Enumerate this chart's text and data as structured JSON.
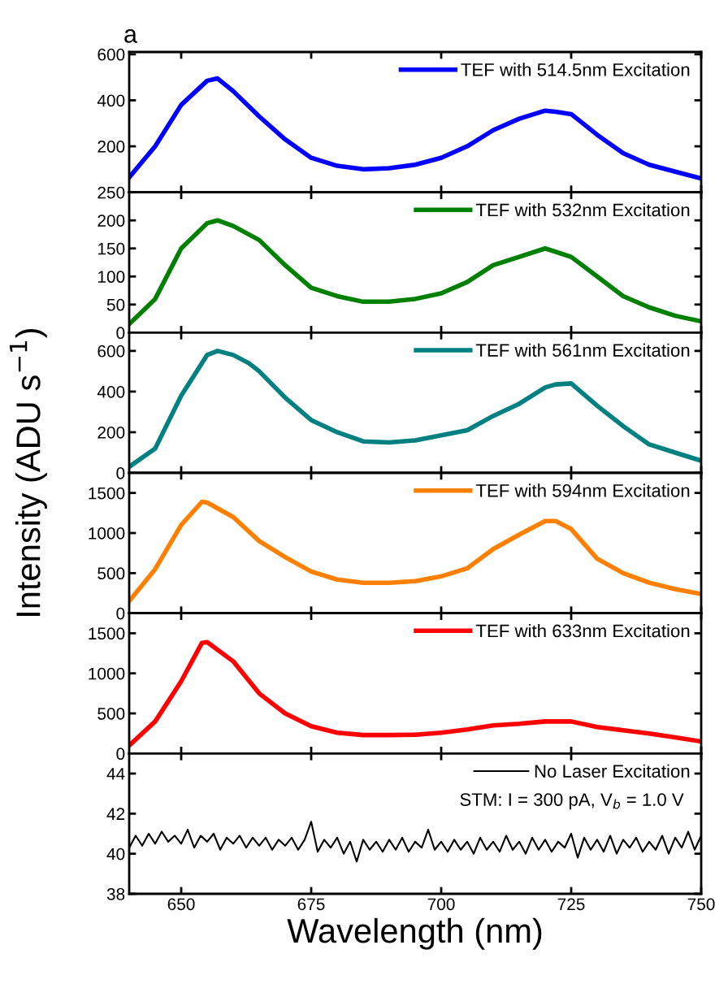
{
  "chart_data": [
    {
      "type": "line",
      "annotations": [
        "a"
      ],
      "ylabel": "Intensity (ADU s$^{−1}$)",
      "xlim": [
        640,
        750
      ],
      "xticks": [
        650,
        675,
        700,
        725,
        750
      ],
      "ylim": [
        0,
        610
      ],
      "yticks": [
        {
          "value": 0,
          "label": null
        },
        200,
        400,
        600
      ],
      "tick_labels": "y",
      "legend": "top right",
      "grid": false,
      "x": [
        640,
        645,
        650,
        655,
        657,
        660,
        665,
        670,
        675,
        680,
        685,
        690,
        695,
        700,
        705,
        710,
        715,
        720,
        722,
        725,
        730,
        735,
        740,
        745,
        750
      ],
      "series": [
        {
          "name": "TEF with 514.5nm Excitation",
          "color": "#0000ff",
          "values": [
            65,
            200,
            380,
            485,
            495,
            440,
            330,
            230,
            150,
            115,
            100,
            105,
            120,
            150,
            200,
            270,
            320,
            355,
            350,
            340,
            250,
            170,
            120,
            90,
            60
          ]
        }
      ]
    },
    {
      "type": "line",
      "xlim": [
        640,
        750
      ],
      "xticks": [
        650,
        675,
        700,
        725,
        750
      ],
      "ylim": [
        0,
        250
      ],
      "yticks": [
        0,
        50,
        100,
        150,
        200,
        250
      ],
      "tick_labels": "y",
      "legend": "top right",
      "grid": false,
      "x": [
        640,
        645,
        650,
        655,
        657,
        660,
        665,
        670,
        675,
        680,
        685,
        690,
        695,
        700,
        705,
        710,
        715,
        720,
        725,
        730,
        735,
        740,
        745,
        750
      ],
      "series": [
        {
          "name": "TEF with 532nm Excitation",
          "color": "#008000",
          "values": [
            15,
            60,
            150,
            195,
            200,
            190,
            165,
            120,
            80,
            65,
            55,
            55,
            60,
            70,
            90,
            120,
            135,
            150,
            135,
            100,
            65,
            45,
            30,
            20
          ]
        }
      ]
    },
    {
      "type": "line",
      "xlim": [
        640,
        750
      ],
      "xticks": [
        650,
        675,
        700,
        725,
        750
      ],
      "ylim": [
        0,
        690
      ],
      "yticks": [
        0,
        200,
        400,
        600
      ],
      "tick_labels": "y",
      "legend": "top right",
      "grid": false,
      "x": [
        640,
        645,
        650,
        655,
        657,
        660,
        663,
        665,
        670,
        675,
        680,
        685,
        690,
        695,
        700,
        705,
        710,
        715,
        720,
        722,
        725,
        730,
        735,
        740,
        745,
        750
      ],
      "series": [
        {
          "name": "TEF with 561nm Excitation",
          "color": "#008080",
          "values": [
            30,
            120,
            380,
            580,
            600,
            580,
            540,
            500,
            370,
            260,
            200,
            155,
            150,
            160,
            185,
            210,
            280,
            340,
            420,
            435,
            440,
            330,
            230,
            140,
            100,
            60
          ]
        }
      ]
    },
    {
      "type": "line",
      "xlim": [
        640,
        750
      ],
      "xticks": [
        650,
        675,
        700,
        725,
        750
      ],
      "ylim": [
        0,
        1750
      ],
      "yticks": [
        0,
        500,
        1000,
        1500
      ],
      "tick_labels": "y",
      "legend": "top right",
      "grid": false,
      "x": [
        640,
        645,
        650,
        654,
        655,
        660,
        665,
        670,
        675,
        680,
        685,
        690,
        695,
        700,
        705,
        710,
        715,
        720,
        722,
        725,
        730,
        735,
        740,
        745,
        750
      ],
      "series": [
        {
          "name": "TEF with 594nm Excitation",
          "color": "#ff8000",
          "values": [
            150,
            550,
            1100,
            1390,
            1380,
            1200,
            900,
            700,
            520,
            420,
            380,
            380,
            400,
            460,
            560,
            800,
            980,
            1150,
            1150,
            1050,
            680,
            500,
            380,
            300,
            240
          ]
        }
      ]
    },
    {
      "type": "line",
      "xlim": [
        640,
        750
      ],
      "xticks": [
        650,
        675,
        700,
        725,
        750
      ],
      "ylim": [
        0,
        1750
      ],
      "yticks": [
        0,
        500,
        1000,
        1500
      ],
      "tick_labels": "y",
      "legend": "top right",
      "grid": false,
      "x": [
        640,
        645,
        650,
        654,
        655,
        660,
        665,
        670,
        675,
        680,
        685,
        690,
        695,
        700,
        705,
        710,
        715,
        720,
        725,
        730,
        735,
        740,
        745,
        750
      ],
      "series": [
        {
          "name": "TEF with 633nm Excitation",
          "color": "#ff0000",
          "values": [
            100,
            400,
            900,
            1380,
            1390,
            1150,
            750,
            500,
            340,
            260,
            230,
            230,
            235,
            260,
            300,
            350,
            370,
            400,
            400,
            330,
            290,
            250,
            200,
            150
          ]
        }
      ]
    },
    {
      "type": "line",
      "xlabel": "Wavelength (nm)",
      "annotations": [
        "STM: I = 300 pA, V$_{b}$ = 1.0 V"
      ],
      "xlim": [
        640,
        750
      ],
      "xticks": [
        650,
        675,
        700,
        725,
        750
      ],
      "ylim": [
        38,
        45
      ],
      "yticks": [
        38,
        40,
        42,
        44
      ],
      "legend": "top right",
      "grid": false,
      "x": [
        640,
        641.25,
        642.5,
        643.75,
        645,
        646.25,
        647.5,
        648.75,
        650,
        651.25,
        652.5,
        653.75,
        655,
        656.25,
        657.5,
        658.75,
        660,
        661.25,
        662.5,
        663.75,
        665,
        666.25,
        667.5,
        668.75,
        670,
        671.25,
        672.5,
        673.75,
        675,
        676.25,
        677.5,
        678.75,
        680,
        681.25,
        682.5,
        683.75,
        685,
        686.25,
        687.5,
        688.75,
        690,
        691.25,
        692.5,
        693.75,
        695,
        696.25,
        697.5,
        698.75,
        700,
        701.25,
        702.5,
        703.75,
        705,
        706.25,
        707.5,
        708.75,
        710,
        711.25,
        712.5,
        713.75,
        715,
        716.25,
        717.5,
        718.75,
        720,
        721.25,
        722.5,
        723.75,
        725,
        726.25,
        727.5,
        728.75,
        730,
        731.25,
        732.5,
        733.75,
        735,
        736.25,
        737.5,
        738.75,
        740,
        741.25,
        742.5,
        743.75,
        745,
        746.25,
        747.5,
        748.75,
        750
      ],
      "series": [
        {
          "name": "No Laser Excitation",
          "color": "#000000",
          "values": [
            40.3,
            40.9,
            40.4,
            41.0,
            40.5,
            41.1,
            40.6,
            40.9,
            40.5,
            41.2,
            40.3,
            40.9,
            40.6,
            41.0,
            40.2,
            40.8,
            40.5,
            40.9,
            40.3,
            40.8,
            40.4,
            40.8,
            40.2,
            40.7,
            40.4,
            40.8,
            40.2,
            40.7,
            41.6,
            40.1,
            40.7,
            40.3,
            40.8,
            40.0,
            40.6,
            39.6,
            40.7,
            40.2,
            40.6,
            40.1,
            40.7,
            40.2,
            40.8,
            40.1,
            40.6,
            40.3,
            41.2,
            40.2,
            40.6,
            40.1,
            40.7,
            40.2,
            40.6,
            40.0,
            40.8,
            40.2,
            40.6,
            40.1,
            40.9,
            40.2,
            40.6,
            40.0,
            40.8,
            40.2,
            40.7,
            40.1,
            40.6,
            40.3,
            41.0,
            39.8,
            40.8,
            40.2,
            40.7,
            40.1,
            40.9,
            40.0,
            40.7,
            40.3,
            40.8,
            40.1,
            40.6,
            40.2,
            40.9,
            40.0,
            40.8,
            40.3,
            41.1,
            40.2,
            40.9
          ]
        }
      ]
    }
  ]
}
